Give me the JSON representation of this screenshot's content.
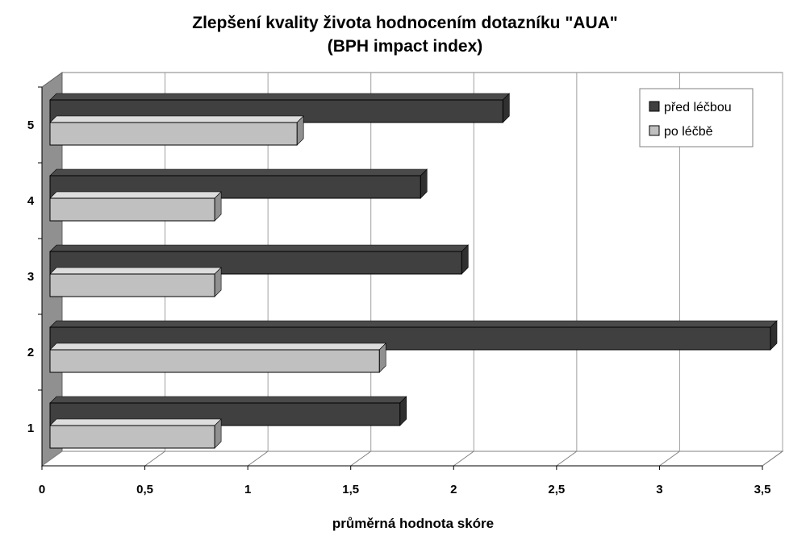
{
  "chart_data": {
    "type": "bar",
    "orientation": "horizontal",
    "title": "Zlepšení kvality života hodnocením dotazníku \"AUA\"",
    "subtitle": "(BPH impact index)",
    "xlabel": "průměrná hodnota skóre",
    "ylabel": "",
    "categories": [
      "1",
      "2",
      "3",
      "4",
      "5"
    ],
    "series": [
      {
        "name": "před léčbou",
        "values": [
          1.7,
          3.5,
          2.0,
          1.8,
          2.2
        ],
        "color": "#404040"
      },
      {
        "name": "po léčbě",
        "values": [
          0.8,
          1.6,
          0.8,
          0.8,
          1.2
        ],
        "color": "#c0c0c0"
      }
    ],
    "xlim": [
      0,
      3.5
    ],
    "xticks": [
      "0",
      "0,5",
      "1",
      "1,5",
      "2",
      "2,5",
      "3",
      "3,5"
    ],
    "grid": true,
    "legend_position": "top-right"
  }
}
